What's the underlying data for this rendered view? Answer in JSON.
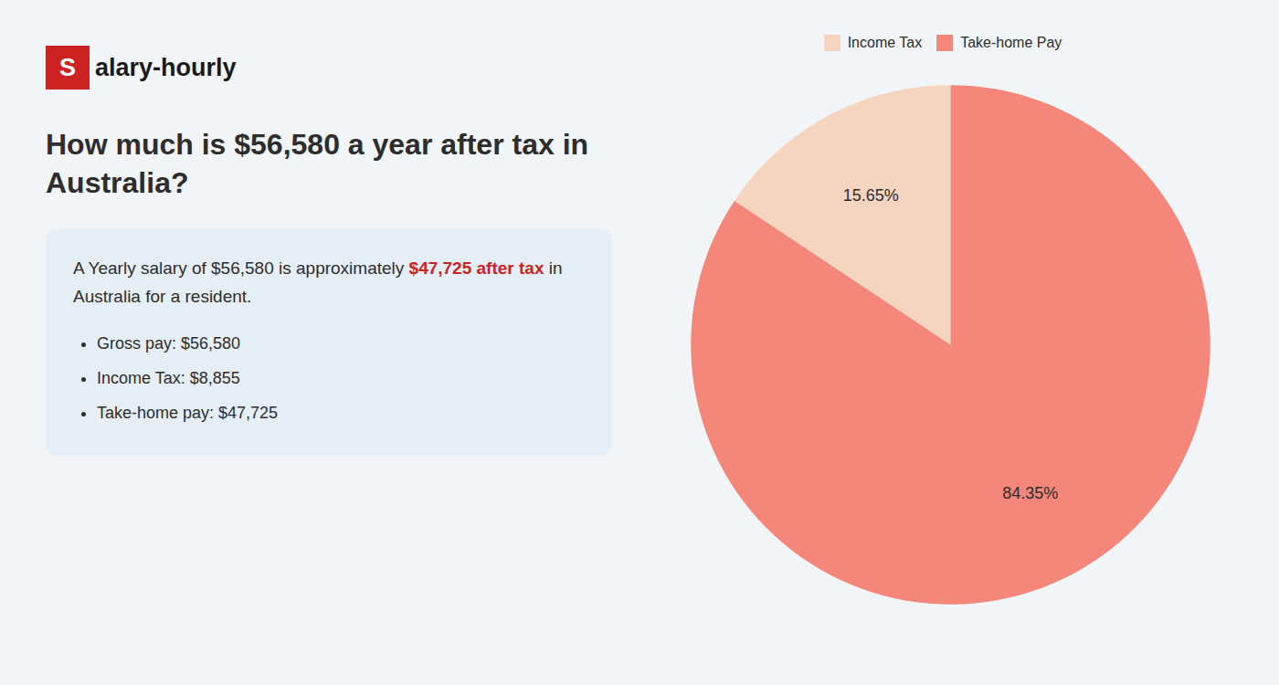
{
  "chart_data": {
    "type": "pie",
    "title": "How much is $56,580 a year after tax in Australia?",
    "categories": [
      "Income Tax",
      "Take-home Pay"
    ],
    "values": [
      15.65,
      84.35
    ],
    "value_labels": [
      "15.65%",
      "84.35%"
    ],
    "colors": [
      "#f5d5c0",
      "#f4877a"
    ],
    "data_labels": true,
    "legend": "top",
    "annotations": [
      "S",
      "alary-hourly",
      "A Yearly salary of $56,580 is approximately ",
      "$47,725 after tax",
      " in",
      "Australia for a resident.",
      "Gross pay: $56,580",
      "Income Tax: $8,855",
      "Take-home pay: $47,725"
    ]
  }
}
